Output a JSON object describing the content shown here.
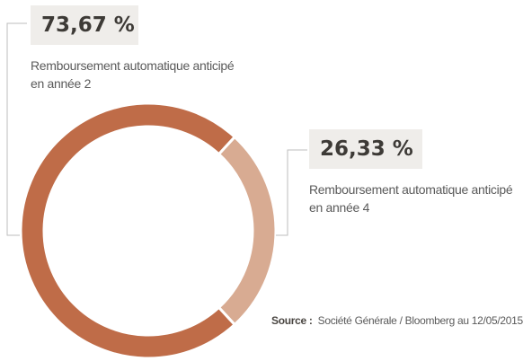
{
  "chart_data": {
    "type": "pie",
    "style": "donut",
    "categories": [
      "Remboursement automatique anticipé en année 2",
      "Remboursement automatique anticipé en année 4"
    ],
    "values": [
      73.67,
      26.33
    ],
    "value_labels": [
      "73,67 %",
      "26,33 %"
    ],
    "descriptions": [
      [
        "Remboursement automatique anticipé",
        "en année 2"
      ],
      [
        "Remboursement automatique anticipé",
        "en année 4"
      ]
    ],
    "colors": [
      "#bf6c48",
      "#d8ab92"
    ],
    "title": "",
    "legend": "callouts"
  },
  "source": {
    "label": "Source :",
    "text": "Société Générale / Bloomberg au 12/05/2015"
  },
  "colors": {
    "callout_background": "#efedea",
    "leader_line": "#bdbdbd"
  }
}
